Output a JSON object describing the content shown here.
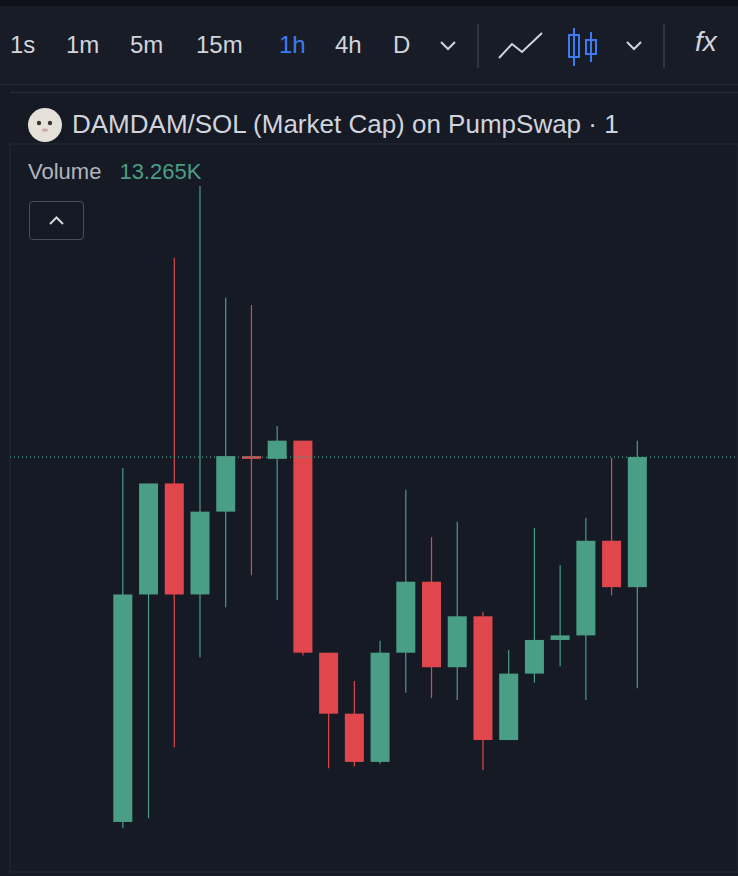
{
  "toolbar": {
    "intervals": [
      "1s",
      "1m",
      "5m",
      "15m",
      "1h",
      "4h",
      "D"
    ],
    "active": "1h",
    "indicator": "fx"
  },
  "chart_data": {
    "type": "candlestick",
    "title": "DAMDAM/SOL (Market Cap) on PumpSwap · 1",
    "volume": {
      "label": "Volume",
      "value": "13.265K"
    },
    "x": [
      0,
      1,
      2,
      3,
      4,
      5,
      6,
      7,
      8,
      9,
      10,
      11,
      12,
      13,
      14,
      15,
      16,
      17,
      18,
      19,
      20
    ],
    "xlim": [
      -4.4,
      23.9
    ],
    "xticks": [
      1,
      13
    ],
    "ylim": [
      0,
      8
    ],
    "yticks": [
      0,
      1,
      2,
      3,
      4,
      5,
      6,
      7,
      8
    ],
    "open": [
      0.55,
      3.05,
      4.27,
      3.05,
      3.96,
      4.57,
      4.54,
      4.74,
      2.41,
      1.74,
      1.21,
      2.41,
      3.19,
      2.25,
      2.81,
      1.45,
      2.18,
      2.55,
      2.6,
      3.64,
      3.13
    ],
    "high": [
      4.44,
      4.27,
      6.75,
      7.66,
      6.31,
      6.23,
      4.9,
      4.74,
      2.41,
      2.1,
      2.54,
      4.2,
      3.68,
      3.85,
      2.86,
      2.44,
      3.78,
      3.37,
      3.89,
      4.55,
      4.74
    ],
    "low": [
      0.48,
      0.59,
      1.37,
      2.36,
      2.91,
      3.26,
      2.99,
      2.38,
      1.14,
      1.16,
      1.19,
      1.97,
      1.91,
      1.89,
      1.12,
      1.45,
      2.08,
      2.26,
      1.89,
      3.04,
      2.02
    ],
    "close": [
      3.05,
      4.27,
      3.05,
      3.96,
      4.57,
      4.54,
      4.74,
      2.41,
      1.74,
      1.21,
      2.41,
      3.19,
      2.25,
      2.81,
      1.45,
      2.18,
      2.55,
      2.6,
      3.64,
      3.13,
      4.56
    ],
    "colors": [
      "#4a9e86",
      "#4a9e86",
      "#e0474c",
      "#4a9e86",
      "#4a9e86",
      "#e0474c",
      "#4a9e86",
      "#e0474c",
      "#e0474c",
      "#e0474c",
      "#4a9e86",
      "#4a9e86",
      "#e0474c",
      "#4a9e86",
      "#e0474c",
      "#4a9e86",
      "#4a9e86",
      "#4a9e86",
      "#4a9e86",
      "#e0474c",
      "#4a9e86"
    ],
    "grid": true,
    "tick_labels": false
  }
}
